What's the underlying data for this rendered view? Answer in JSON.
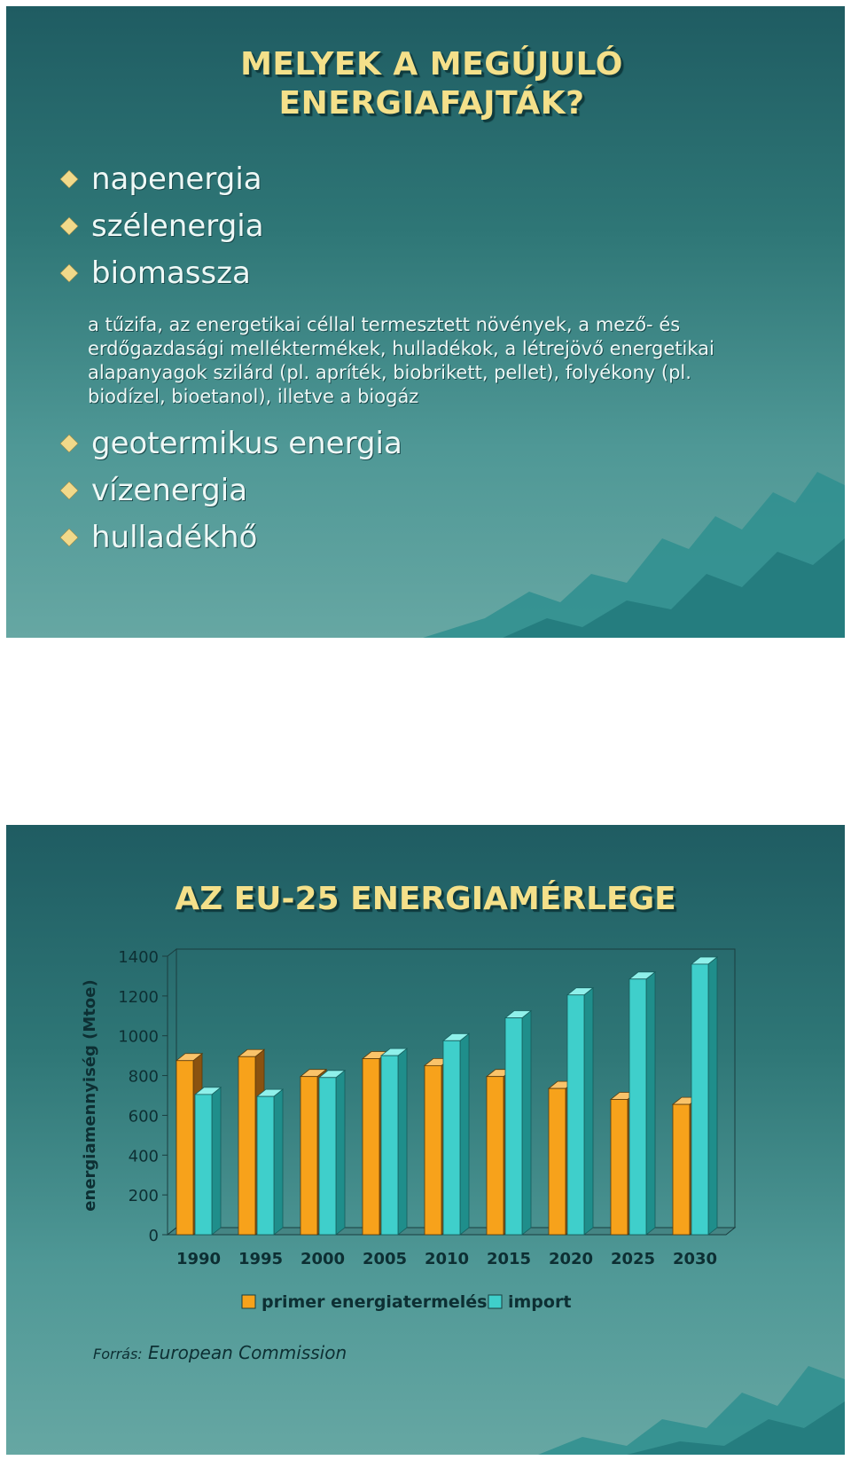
{
  "slide1": {
    "title_line1": "MELYEK A MEGÚJULÓ",
    "title_line2": "ENERGIAFAJTÁK?",
    "bullets_top": [
      "napenergia",
      "szélenergia",
      "biomassza"
    ],
    "biomass_description": "a tűzifa, az energetikai céllal termesztett növények, a mező- és erdőgazdasági melléktermékek, hulladékok, a létrejövő energetikai alapanyagok szilárd (pl. apríték, biobrikett, pellet), folyékony (pl. biodízel, bioetanol), illetve a biogáz",
    "bullets_bottom": [
      "geotermikus energia",
      "vízenergia",
      "hulladékhő"
    ]
  },
  "slide2": {
    "title": "AZ EU-25 ENERGIAMÉRLEGE",
    "source_label": "Forrás:",
    "source_value": "European Commission"
  },
  "colors": {
    "title": "#f4e08a",
    "bullet": "#f1d98a",
    "primer": "#f7a21b",
    "import": "#3fcfcb"
  },
  "chart_data": {
    "type": "bar",
    "ylabel": "energiamennyiség (Mtoe)",
    "xlabel": "",
    "ylim": [
      0,
      1400
    ],
    "yticks": [
      0,
      200,
      400,
      600,
      800,
      1000,
      1200,
      1400
    ],
    "categories": [
      "1990",
      "1995",
      "2000",
      "2005",
      "2010",
      "2015",
      "2020",
      "2025",
      "2030"
    ],
    "series": [
      {
        "name": "primer energiatermelés",
        "values": [
          875,
          895,
          795,
          885,
          850,
          795,
          735,
          680,
          655
        ]
      },
      {
        "name": "import",
        "values": [
          705,
          695,
          790,
          900,
          975,
          1090,
          1205,
          1285,
          1360
        ]
      }
    ],
    "legend": "bottom",
    "grid": false,
    "style": "3d-clustered-column"
  }
}
